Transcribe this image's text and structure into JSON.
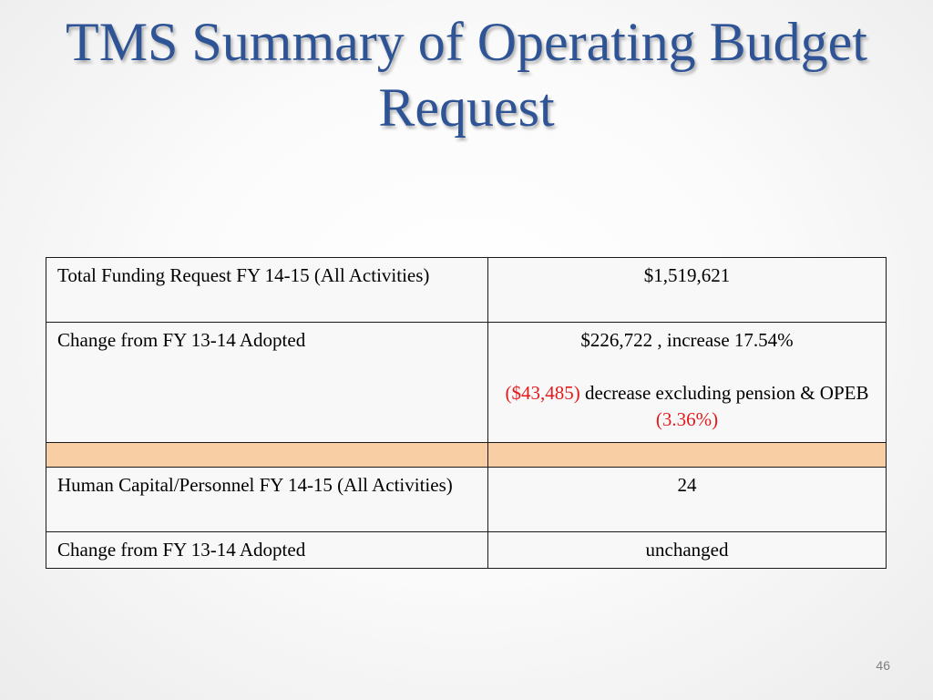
{
  "slide": {
    "title": "TMS Summary of Operating Budget Request",
    "page_number": "46"
  },
  "colors": {
    "title": "#2f5496",
    "negative_values": "#e31a1c",
    "separator_row": "#f8cfa4",
    "cell_background": "#f8f8f8"
  },
  "table": {
    "rows": [
      {
        "label": "Total Funding Request FY 14-15 (All Activities)",
        "value": "$1,519,621"
      },
      {
        "label": "Change from FY 13-14 Adopted",
        "value_line1": "$226,722 , increase  17.54%",
        "value_line2_negative": "($43,485)",
        "value_line2_text": "decrease excluding pension & OPEB",
        "value_line2_percent": "(3.36%)"
      },
      {
        "label": "",
        "value": ""
      },
      {
        "label": "Human Capital/Personnel FY 14-15 (All Activities)",
        "value": "24"
      },
      {
        "label": "Change from FY 13-14 Adopted",
        "value": "unchanged"
      }
    ]
  }
}
